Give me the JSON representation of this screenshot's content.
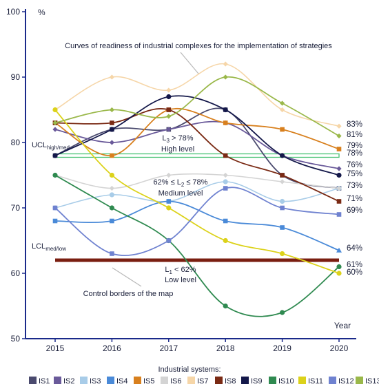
{
  "chart_data": {
    "type": "line",
    "y_unit": "%",
    "xlabel": "Year",
    "ylim": [
      50,
      100
    ],
    "y_ticks": [
      50,
      60,
      70,
      80,
      90,
      100
    ],
    "x": [
      "2015",
      "2016",
      "2017",
      "2018",
      "2019",
      "2020"
    ],
    "grid": false,
    "legend_title": "Industrial systems:",
    "legend_position": "bottom",
    "series": [
      {
        "name": "IS1",
        "color": "#4a4a6e",
        "values": [
          78,
          82,
          82,
          85,
          75,
          73
        ]
      },
      {
        "name": "IS2",
        "color": "#6a5a9a",
        "values": [
          82,
          80,
          82,
          83,
          78,
          76
        ]
      },
      {
        "name": "IS3",
        "color": "#a8cce8",
        "values": [
          70,
          72,
          71,
          74,
          71,
          73
        ]
      },
      {
        "name": "IS4",
        "color": "#4a8ad8",
        "values": [
          68,
          68,
          71,
          68,
          67,
          63.5
        ]
      },
      {
        "name": "IS5",
        "color": "#d8801e",
        "values": [
          83,
          78,
          85,
          83,
          82,
          79
        ]
      },
      {
        "name": "IS6",
        "color": "#d4d4d4",
        "values": [
          75,
          73,
          75,
          75,
          74,
          73
        ]
      },
      {
        "name": "IS7",
        "color": "#f6d6a8",
        "values": [
          85,
          90,
          88,
          92,
          85,
          82.5
        ]
      },
      {
        "name": "IS8",
        "color": "#7a2a14",
        "values": [
          83,
          83,
          85,
          78,
          75,
          71
        ]
      },
      {
        "name": "IS9",
        "color": "#14184a",
        "values": [
          78,
          82,
          87,
          85,
          78,
          75
        ]
      },
      {
        "name": "IS10",
        "color": "#2f8a50",
        "values": [
          75,
          70,
          65,
          55,
          54,
          61
        ]
      },
      {
        "name": "IS11",
        "color": "#dcd21a",
        "values": [
          85,
          75,
          70,
          65,
          63,
          60
        ]
      },
      {
        "name": "IS12",
        "color": "#6f82d0",
        "values": [
          70,
          63,
          65,
          73,
          70,
          69
        ]
      },
      {
        "name": "IS13",
        "color": "#9ab84a",
        "values": [
          83,
          85,
          84,
          90,
          86,
          81
        ]
      }
    ],
    "end_labels": [
      {
        "text": "83%",
        "value": 83.0
      },
      {
        "text": "81%",
        "value": 81.0
      },
      {
        "text": "79%",
        "value": 79.0
      },
      {
        "text": "78%",
        "value": 78.0
      },
      {
        "text": "76%",
        "value": 76.0
      },
      {
        "text": "75%",
        "value": 75.0
      },
      {
        "text": "73%",
        "value": 73.0
      },
      {
        "text": "71%",
        "value": 71.0
      },
      {
        "text": "69%",
        "value": 69.0
      },
      {
        "text": "64%",
        "value": 64.0
      },
      {
        "text": "61%",
        "value": 61.0
      },
      {
        "text": "60%",
        "value": 60.0
      }
    ],
    "control_borders": [
      {
        "name": "UCL",
        "sub": "high/med",
        "value": 78,
        "color": "#44c070"
      },
      {
        "name": "LCL",
        "sub": "med/low",
        "value": 62,
        "color": "#7a1e10"
      }
    ],
    "zones": [
      {
        "pre": "L",
        "sub": "3",
        "post": " > 78%",
        "level": "High level"
      },
      {
        "pre": "62% ≤ L",
        "sub": "2",
        "post": " ≤ 78%",
        "level": "Medium level"
      },
      {
        "pre": "L",
        "sub": "1",
        "post": " < 62%",
        "level": "Low level"
      }
    ],
    "annotations": {
      "curves": "Curves of readiness of industrial complexes for the implementation of strategies",
      "borders": "Control borders of the map"
    }
  }
}
